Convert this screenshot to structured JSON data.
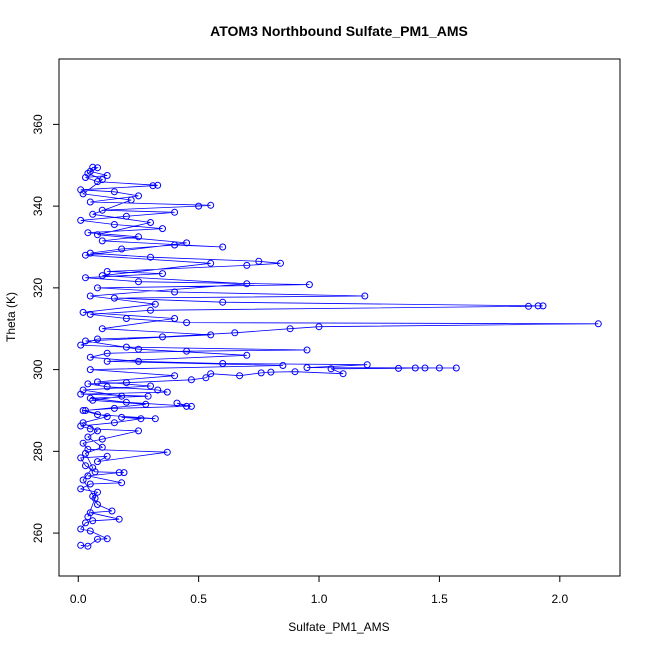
{
  "chart_data": {
    "type": "line",
    "title": "ATOM3 Northbound Sulfate_PM1_AMS",
    "xlabel": "Sulfate_PM1_AMS",
    "ylabel": "Theta (K)",
    "xlim": [
      -0.08,
      2.25
    ],
    "ylim": [
      249.5,
      376
    ],
    "x_ticks": [
      0.0,
      0.5,
      1.0,
      1.5,
      2.0
    ],
    "x_tick_labels": [
      "0.0",
      "0.5",
      "1.0",
      "1.5",
      "2.0"
    ],
    "y_ticks": [
      260,
      280,
      300,
      320,
      340,
      360
    ],
    "y_tick_labels": [
      "260",
      "280",
      "300",
      "320",
      "340",
      "360"
    ],
    "grid": false,
    "series_color": "#0000ff",
    "marker": "open-circle",
    "series": [
      {
        "points": [
          [
            0.01,
            257.0
          ],
          [
            0.04,
            256.8
          ],
          [
            0.08,
            258.5
          ],
          [
            0.12,
            258.6
          ],
          [
            0.05,
            260.5
          ],
          [
            0.01,
            261.0
          ],
          [
            0.03,
            262.5
          ],
          [
            0.06,
            263.0
          ],
          [
            0.17,
            263.4
          ],
          [
            0.05,
            265.0
          ],
          [
            0.14,
            265.4
          ],
          [
            0.08,
            267.0
          ],
          [
            0.06,
            269.0
          ],
          [
            0.08,
            270.0
          ],
          [
            0.01,
            270.8
          ],
          [
            0.05,
            272.0
          ],
          [
            0.18,
            272.3
          ],
          [
            0.04,
            274.0
          ],
          [
            0.17,
            274.8
          ],
          [
            0.19,
            274.8
          ],
          [
            0.07,
            275.0
          ],
          [
            0.03,
            276.5
          ],
          [
            0.01,
            278.4
          ],
          [
            0.12,
            278.8
          ],
          [
            0.08,
            277.5
          ],
          [
            0.37,
            279.8
          ],
          [
            0.04,
            280.5
          ],
          [
            0.02,
            282.0
          ],
          [
            0.1,
            283.0
          ],
          [
            0.25,
            285.0
          ],
          [
            0.05,
            285.5
          ],
          [
            0.01,
            286.2
          ],
          [
            0.15,
            287.0
          ],
          [
            0.26,
            288.0
          ],
          [
            0.18,
            288.3
          ],
          [
            0.32,
            288.0
          ],
          [
            0.08,
            289.0
          ],
          [
            0.02,
            290.0
          ],
          [
            0.15,
            290.5
          ],
          [
            0.45,
            291.0
          ],
          [
            0.41,
            291.8
          ],
          [
            0.47,
            291.0
          ],
          [
            0.2,
            292.0
          ],
          [
            0.05,
            293.0
          ],
          [
            0.29,
            293.5
          ],
          [
            0.01,
            294.0
          ],
          [
            0.37,
            294.5
          ],
          [
            0.33,
            295.0
          ],
          [
            0.12,
            295.8
          ],
          [
            0.04,
            296.5
          ],
          [
            0.2,
            296.8
          ],
          [
            0.47,
            297.5
          ],
          [
            0.53,
            298.0
          ],
          [
            0.55,
            299.0
          ],
          [
            0.67,
            298.5
          ],
          [
            0.76,
            299.2
          ],
          [
            0.8,
            299.4
          ],
          [
            0.9,
            299.5
          ],
          [
            1.1,
            299.0
          ],
          [
            1.05,
            300.2
          ],
          [
            1.33,
            300.3
          ],
          [
            1.4,
            300.4
          ],
          [
            1.44,
            300.4
          ],
          [
            1.5,
            300.4
          ],
          [
            1.57,
            300.4
          ],
          [
            0.95,
            300.5
          ],
          [
            1.2,
            301.2
          ],
          [
            0.6,
            301.5
          ],
          [
            0.25,
            302.0
          ],
          [
            0.05,
            303.0
          ],
          [
            0.12,
            304.0
          ],
          [
            0.45,
            304.5
          ],
          [
            0.95,
            304.8
          ],
          [
            0.2,
            305.5
          ],
          [
            0.01,
            306.0
          ],
          [
            0.08,
            307.5
          ],
          [
            0.35,
            308.0
          ],
          [
            0.65,
            309.0
          ],
          [
            0.88,
            310.0
          ],
          [
            1.0,
            310.5
          ],
          [
            2.16,
            311.2
          ],
          [
            0.45,
            311.5
          ],
          [
            0.2,
            312.5
          ],
          [
            0.05,
            313.5
          ],
          [
            0.3,
            314.5
          ],
          [
            1.87,
            315.5
          ],
          [
            1.91,
            315.6
          ],
          [
            1.93,
            315.6
          ],
          [
            0.6,
            316.5
          ],
          [
            0.15,
            317.5
          ],
          [
            1.19,
            318.0
          ],
          [
            0.4,
            319.0
          ],
          [
            0.08,
            320.0
          ],
          [
            0.96,
            320.8
          ],
          [
            0.25,
            321.5
          ],
          [
            0.03,
            322.5
          ],
          [
            0.35,
            323.5
          ],
          [
            0.12,
            324.0
          ],
          [
            0.7,
            325.5
          ],
          [
            0.84,
            326.0
          ],
          [
            0.75,
            326.5
          ],
          [
            0.3,
            327.5
          ],
          [
            0.05,
            328.5
          ],
          [
            0.18,
            329.5
          ],
          [
            0.4,
            330.5
          ],
          [
            0.6,
            330.0
          ],
          [
            0.1,
            331.5
          ],
          [
            0.25,
            332.5
          ],
          [
            0.04,
            333.5
          ],
          [
            0.35,
            334.5
          ],
          [
            0.15,
            335.5
          ],
          [
            0.01,
            336.5
          ],
          [
            0.2,
            337.5
          ],
          [
            0.4,
            338.5
          ],
          [
            0.1,
            339.0
          ],
          [
            0.5,
            340.0
          ],
          [
            0.55,
            340.2
          ],
          [
            0.05,
            341.0
          ],
          [
            0.25,
            342.5
          ],
          [
            0.15,
            343.5
          ],
          [
            0.01,
            344.0
          ],
          [
            0.31,
            345.0
          ],
          [
            0.33,
            345.1
          ],
          [
            0.08,
            346.0
          ],
          [
            0.03,
            347.0
          ],
          [
            0.12,
            347.5
          ],
          [
            0.05,
            348.5
          ],
          [
            0.06,
            349.5
          ],
          [
            0.08,
            349.4
          ],
          [
            0.04,
            348.0
          ],
          [
            0.1,
            346.5
          ],
          [
            0.02,
            343.0
          ],
          [
            0.22,
            341.5
          ],
          [
            0.06,
            338.0
          ],
          [
            0.3,
            336.0
          ],
          [
            0.08,
            333.0
          ],
          [
            0.45,
            331.0
          ],
          [
            0.03,
            328.0
          ],
          [
            0.55,
            326.0
          ],
          [
            0.1,
            323.0
          ],
          [
            0.7,
            321.0
          ],
          [
            0.05,
            318.0
          ],
          [
            0.32,
            316.0
          ],
          [
            0.02,
            314.0
          ],
          [
            0.4,
            312.5
          ],
          [
            0.1,
            310.0
          ],
          [
            0.55,
            308.5
          ],
          [
            0.03,
            307.0
          ],
          [
            0.25,
            305.0
          ],
          [
            0.7,
            303.5
          ],
          [
            0.12,
            302.0
          ],
          [
            0.85,
            301.0
          ],
          [
            0.05,
            300.0
          ],
          [
            0.4,
            298.5
          ],
          [
            0.08,
            297.0
          ],
          [
            0.3,
            296.0
          ],
          [
            0.02,
            295.0
          ],
          [
            0.18,
            293.5
          ],
          [
            0.06,
            292.5
          ],
          [
            0.28,
            291.5
          ],
          [
            0.03,
            290.0
          ],
          [
            0.12,
            288.5
          ],
          [
            0.02,
            287.0
          ],
          [
            0.08,
            285.0
          ],
          [
            0.04,
            283.5
          ],
          [
            0.1,
            281.0
          ],
          [
            0.03,
            279.5
          ],
          [
            0.06,
            276.0
          ],
          [
            0.02,
            273.0
          ],
          [
            0.07,
            268.5
          ],
          [
            0.04,
            264.0
          ]
        ]
      }
    ]
  }
}
